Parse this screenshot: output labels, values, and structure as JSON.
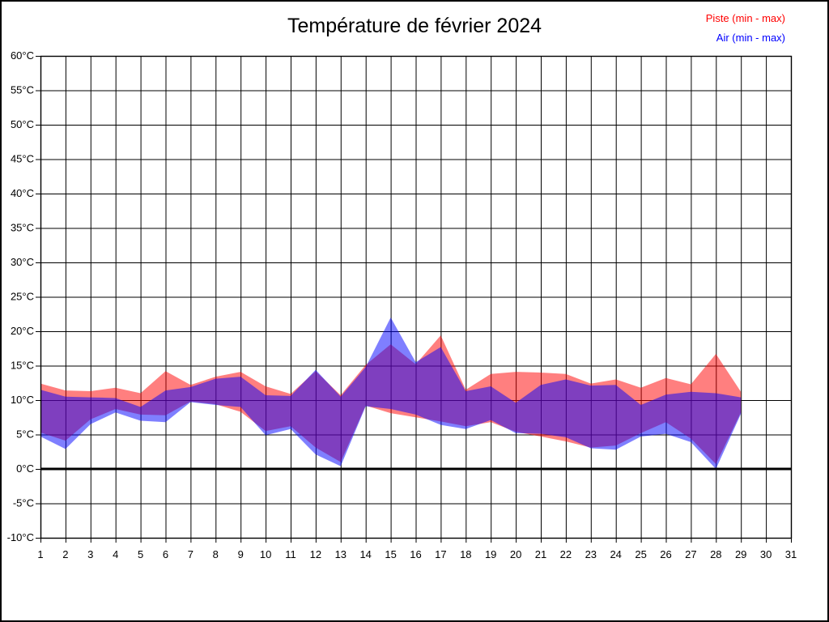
{
  "title": "Température de février 2024",
  "legend": {
    "piste": "Piste (min - max)",
    "air": "Air (min - max)",
    "piste_color": "#ff0000",
    "air_color": "#0000ff"
  },
  "chart_data": {
    "type": "area",
    "title": "Température de février 2024",
    "x_label": "day of month",
    "y_unit": "°C",
    "xlim": [
      1,
      31
    ],
    "ylim": [
      -10,
      60
    ],
    "y_step": 5,
    "grid": true,
    "zero_line": true,
    "legend_position": "top-right",
    "x_tick_labels": [
      "1",
      "2",
      "3",
      "4",
      "5",
      "6",
      "7",
      "8",
      "9",
      "10",
      "11",
      "12",
      "13",
      "14",
      "15",
      "16",
      "17",
      "18",
      "19",
      "20",
      "21",
      "22",
      "23",
      "24",
      "25",
      "26",
      "27",
      "28",
      "29",
      "30",
      "31"
    ],
    "y_tick_labels": [
      "60°C",
      "55°C",
      "50°C",
      "45°C",
      "40°C",
      "35°C",
      "30°C",
      "25°C",
      "20°C",
      "15°C",
      "10°C",
      "5°C",
      "0°C",
      "-5°C",
      "-10°C"
    ],
    "days": [
      1,
      2,
      3,
      4,
      5,
      6,
      7,
      8,
      9,
      10,
      11,
      12,
      13,
      14,
      15,
      16,
      17,
      18,
      19,
      20,
      21,
      22,
      23,
      24,
      25,
      26,
      27,
      28,
      29
    ],
    "series": [
      {
        "name": "Piste (min - max)",
        "color": "#ff0000",
        "min": [
          5.3,
          4.1,
          7.2,
          8.7,
          7.9,
          7.8,
          9.8,
          9.4,
          8.3,
          5.5,
          6.2,
          3.1,
          1.0,
          9.2,
          8.1,
          7.5,
          6.9,
          6.2,
          6.8,
          5.4,
          4.7,
          4.0,
          3.1,
          3.4,
          5.2,
          6.8,
          4.4,
          0.7,
          8.2
        ],
        "max": [
          12.4,
          11.4,
          11.3,
          11.8,
          11.0,
          14.2,
          12.2,
          13.4,
          14.1,
          12.0,
          10.9,
          14.2,
          10.7,
          15.1,
          18.1,
          15.2,
          19.4,
          11.5,
          13.8,
          14.1,
          14.0,
          13.8,
          12.4,
          13.0,
          11.8,
          13.2,
          12.3,
          16.7,
          11.2
        ]
      },
      {
        "name": "Air (min - max)",
        "color": "#0000ff",
        "min": [
          4.7,
          2.9,
          6.5,
          8.2,
          7.0,
          6.8,
          9.7,
          9.3,
          9.0,
          4.9,
          5.8,
          2.1,
          0.4,
          9.1,
          8.7,
          7.9,
          6.4,
          5.8,
          7.1,
          5.2,
          5.1,
          4.6,
          3.0,
          2.8,
          4.7,
          5.1,
          3.9,
          0.0,
          8.0
        ],
        "max": [
          11.5,
          10.5,
          10.4,
          10.3,
          9.0,
          11.4,
          11.9,
          13.1,
          13.4,
          10.7,
          10.6,
          14.4,
          10.5,
          14.8,
          22.0,
          15.5,
          17.7,
          11.3,
          12.0,
          9.6,
          12.2,
          13.0,
          12.1,
          12.2,
          9.3,
          10.8,
          11.2,
          11.0,
          10.4
        ]
      }
    ]
  }
}
